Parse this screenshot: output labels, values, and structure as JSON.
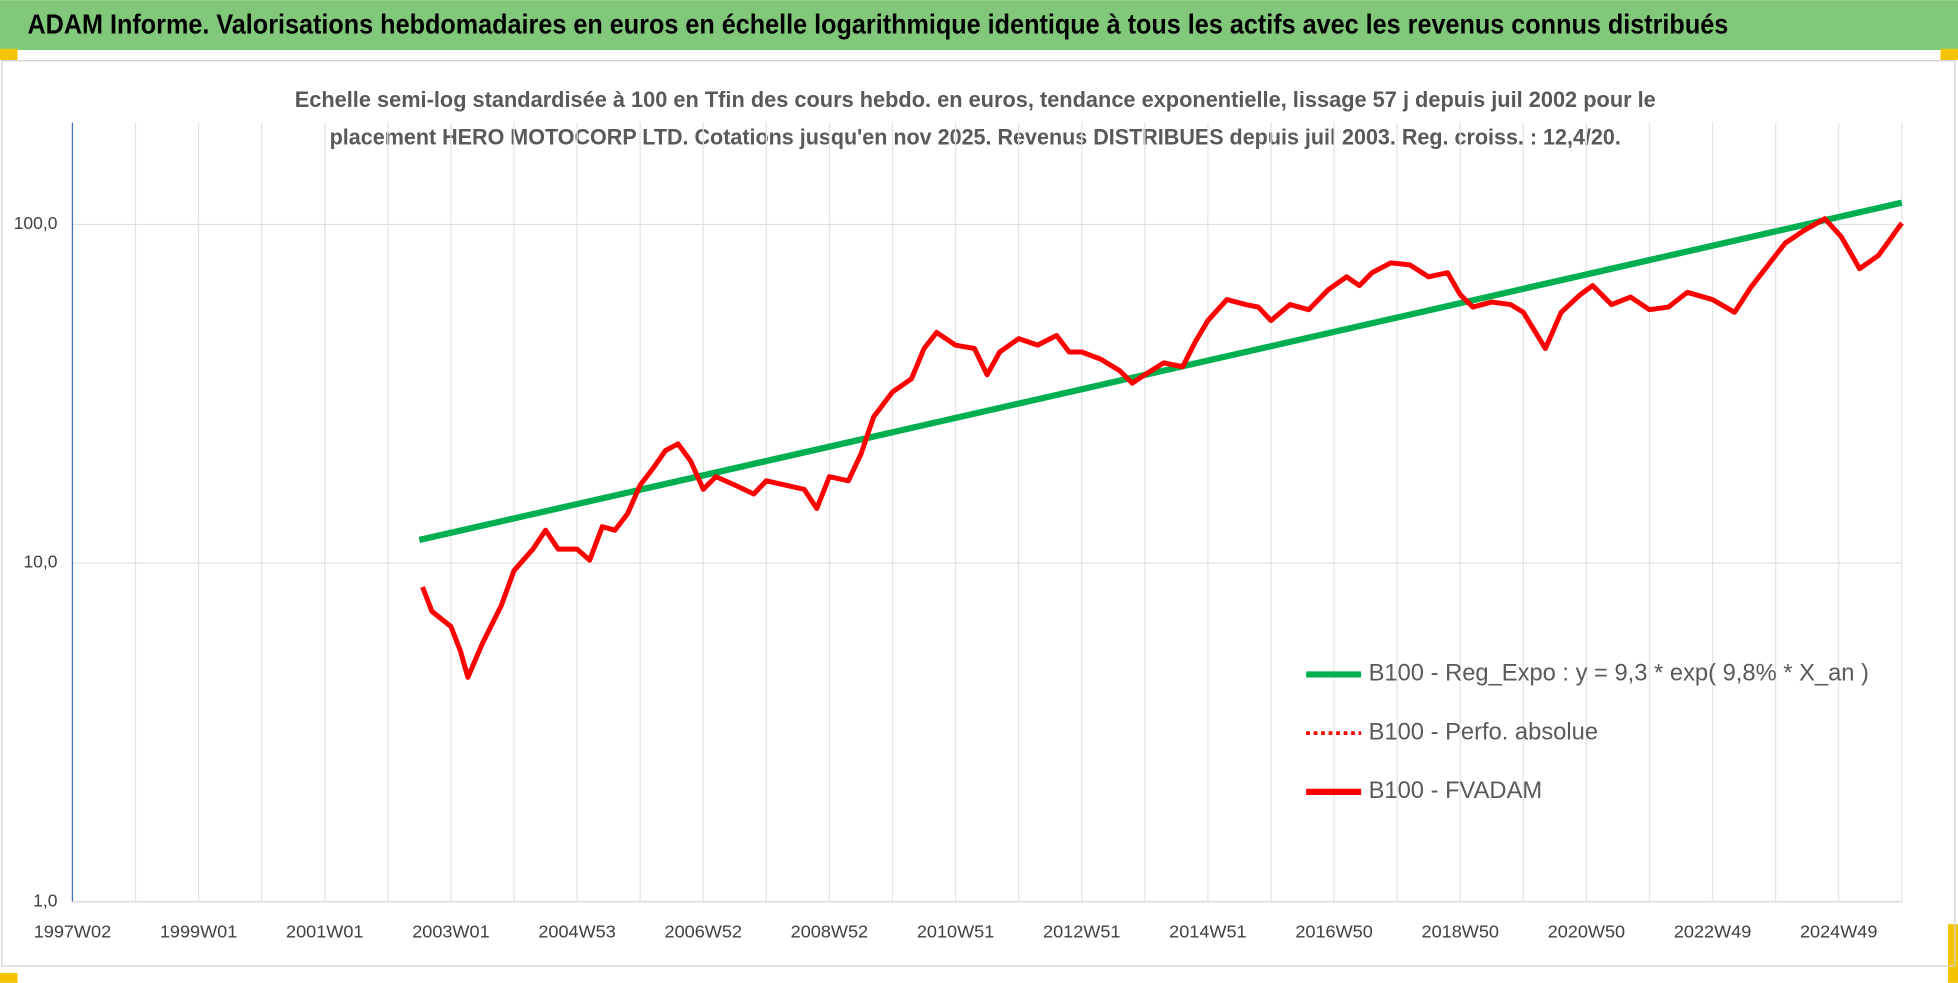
{
  "header": {
    "title": "ADAM Informe. Valorisations hebdomadaires en euros en échelle logarithmique identique à tous les actifs avec les revenus connus distribués"
  },
  "chart_data": {
    "type": "line",
    "title_lines": [
      "Echelle semi-log standardisée à 100 en Tfin des cours hebdo. en euros, tendance exponentielle, lissage 57 j depuis juil 2002 pour le",
      "placement HERO MOTOCORP LTD. Cotations jusqu'en nov 2025. Revenus DISTRIBUES depuis juil 2003. Reg. croiss. : 12,4/20."
    ],
    "log_y": true,
    "grid": true,
    "legend": "right",
    "xlim": [
      1997,
      2026
    ],
    "xticks": [
      {
        "value": 1997,
        "label": "1997W02"
      },
      {
        "value": 1999,
        "label": "1999W01"
      },
      {
        "value": 2001,
        "label": "2001W01"
      },
      {
        "value": 2003,
        "label": "2003W01"
      },
      {
        "value": 2005,
        "label": "2004W53"
      },
      {
        "value": 2007,
        "label": "2006W52"
      },
      {
        "value": 2009,
        "label": "2008W52"
      },
      {
        "value": 2011,
        "label": "2010W51"
      },
      {
        "value": 2013,
        "label": "2012W51"
      },
      {
        "value": 2015,
        "label": "2014W51"
      },
      {
        "value": 2017,
        "label": "2016W50"
      },
      {
        "value": 2019,
        "label": "2018W50"
      },
      {
        "value": 2021,
        "label": "2020W50"
      },
      {
        "value": 2023,
        "label": "2022W49"
      },
      {
        "value": 2025,
        "label": "2024W49"
      }
    ],
    "ylim": [
      1,
      200
    ],
    "yticks": [
      {
        "value": 1,
        "label": "1,0"
      },
      {
        "value": 10,
        "label": "10,0"
      },
      {
        "value": 100,
        "label": "100,0"
      }
    ],
    "series": [
      {
        "name": "B100 - Reg_Expo : y = 9,3 * exp( 9,8% *  X_an )",
        "color": "#00b050",
        "dash": "solid",
        "x": [
          2002.5,
          2026.0
        ],
        "values": [
          11.7,
          116
        ]
      },
      {
        "name": "B100 - Perfo. absolue",
        "color": "#ff0000",
        "dash": "dotted"
      },
      {
        "name": "B100 - FVADAM",
        "color": "#ff0000",
        "dash": "solid",
        "x": [
          2002.55,
          2002.7,
          2003.0,
          2003.15,
          2003.27,
          2003.5,
          2003.8,
          2004.0,
          2004.3,
          2004.5,
          2004.7,
          2005.0,
          2005.2,
          2005.4,
          2005.6,
          2005.8,
          2006.0,
          2006.2,
          2006.4,
          2006.6,
          2006.8,
          2007.0,
          2007.2,
          2007.5,
          2007.8,
          2008.0,
          2008.3,
          2008.6,
          2008.8,
          2009.0,
          2009.3,
          2009.5,
          2009.7,
          2010.0,
          2010.3,
          2010.5,
          2010.7,
          2011.0,
          2011.3,
          2011.5,
          2011.7,
          2012.0,
          2012.3,
          2012.6,
          2012.8,
          2013.0,
          2013.3,
          2013.6,
          2013.8,
          2014.0,
          2014.3,
          2014.6,
          2014.8,
          2015.0,
          2015.3,
          2015.6,
          2015.8,
          2016.0,
          2016.3,
          2016.6,
          2016.9,
          2017.2,
          2017.4,
          2017.6,
          2017.9,
          2018.2,
          2018.5,
          2018.8,
          2019.0,
          2019.2,
          2019.5,
          2019.8,
          2020.0,
          2020.35,
          2020.6,
          2020.9,
          2021.1,
          2021.4,
          2021.7,
          2022.0,
          2022.3,
          2022.6,
          2023.0,
          2023.35,
          2023.6,
          2024.15,
          2024.45,
          2024.78,
          2025.04,
          2025.33,
          2025.63,
          2026.0
        ],
        "values": [
          8.5,
          7.2,
          6.5,
          5.5,
          4.6,
          5.8,
          7.5,
          9.5,
          11,
          12.5,
          11,
          11,
          10.2,
          12.8,
          12.5,
          14,
          17,
          19,
          21.5,
          22.5,
          20,
          16.5,
          18,
          17,
          16,
          17.5,
          17,
          16.5,
          14.5,
          18,
          17.5,
          21,
          27,
          32,
          35,
          43,
          48,
          44,
          43,
          36,
          42,
          46,
          44,
          47,
          42,
          42,
          40,
          37,
          34,
          36,
          39,
          38,
          45,
          52,
          60,
          58,
          57,
          52,
          58,
          56,
          64,
          70,
          66,
          72,
          77,
          76,
          70,
          72,
          62,
          57,
          59,
          58,
          55,
          43,
          55,
          62,
          66,
          58,
          61,
          56,
          57,
          63,
          60,
          55,
          65,
          88,
          96,
          104,
          92,
          74,
          81,
          101
        ]
      }
    ]
  }
}
